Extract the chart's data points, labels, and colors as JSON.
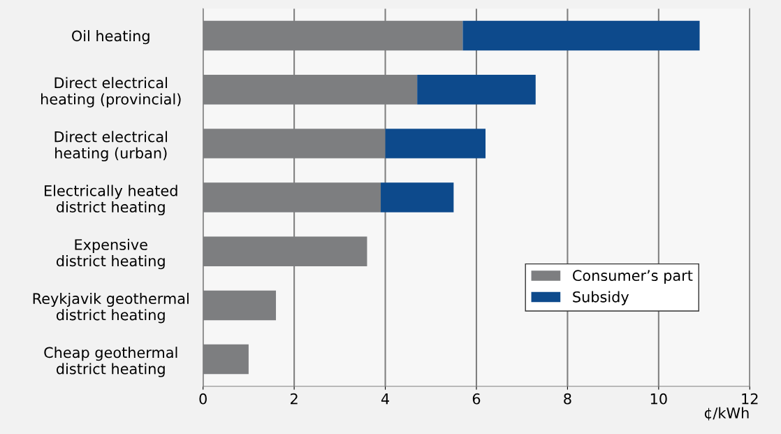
{
  "chart_data": {
    "type": "bar",
    "orientation": "horizontal",
    "stacked": true,
    "categories": [
      "Oil heating",
      "Direct electrical\nheating (provincial)",
      "Direct electrical\nheating (urban)",
      "Electrically heated\ndistrict heating",
      "Expensive\ndistrict heating",
      "Reykjavik geothermal\ndistrict heating",
      "Cheap geothermal\ndistrict heating"
    ],
    "series": [
      {
        "name": "Consumer’s part",
        "color": "#7d7e80",
        "values": [
          5.7,
          4.7,
          4.0,
          3.9,
          3.6,
          1.6,
          1.0
        ]
      },
      {
        "name": "Subsidy",
        "color": "#0d4a8c",
        "values": [
          5.2,
          2.6,
          2.2,
          1.6,
          null,
          null,
          null
        ]
      }
    ],
    "xlabel": "¢/kWh",
    "xlim": [
      0,
      12
    ],
    "xticks": [
      0,
      2,
      4,
      6,
      8,
      10,
      12
    ],
    "grid": "x",
    "legend": "bottom right"
  }
}
